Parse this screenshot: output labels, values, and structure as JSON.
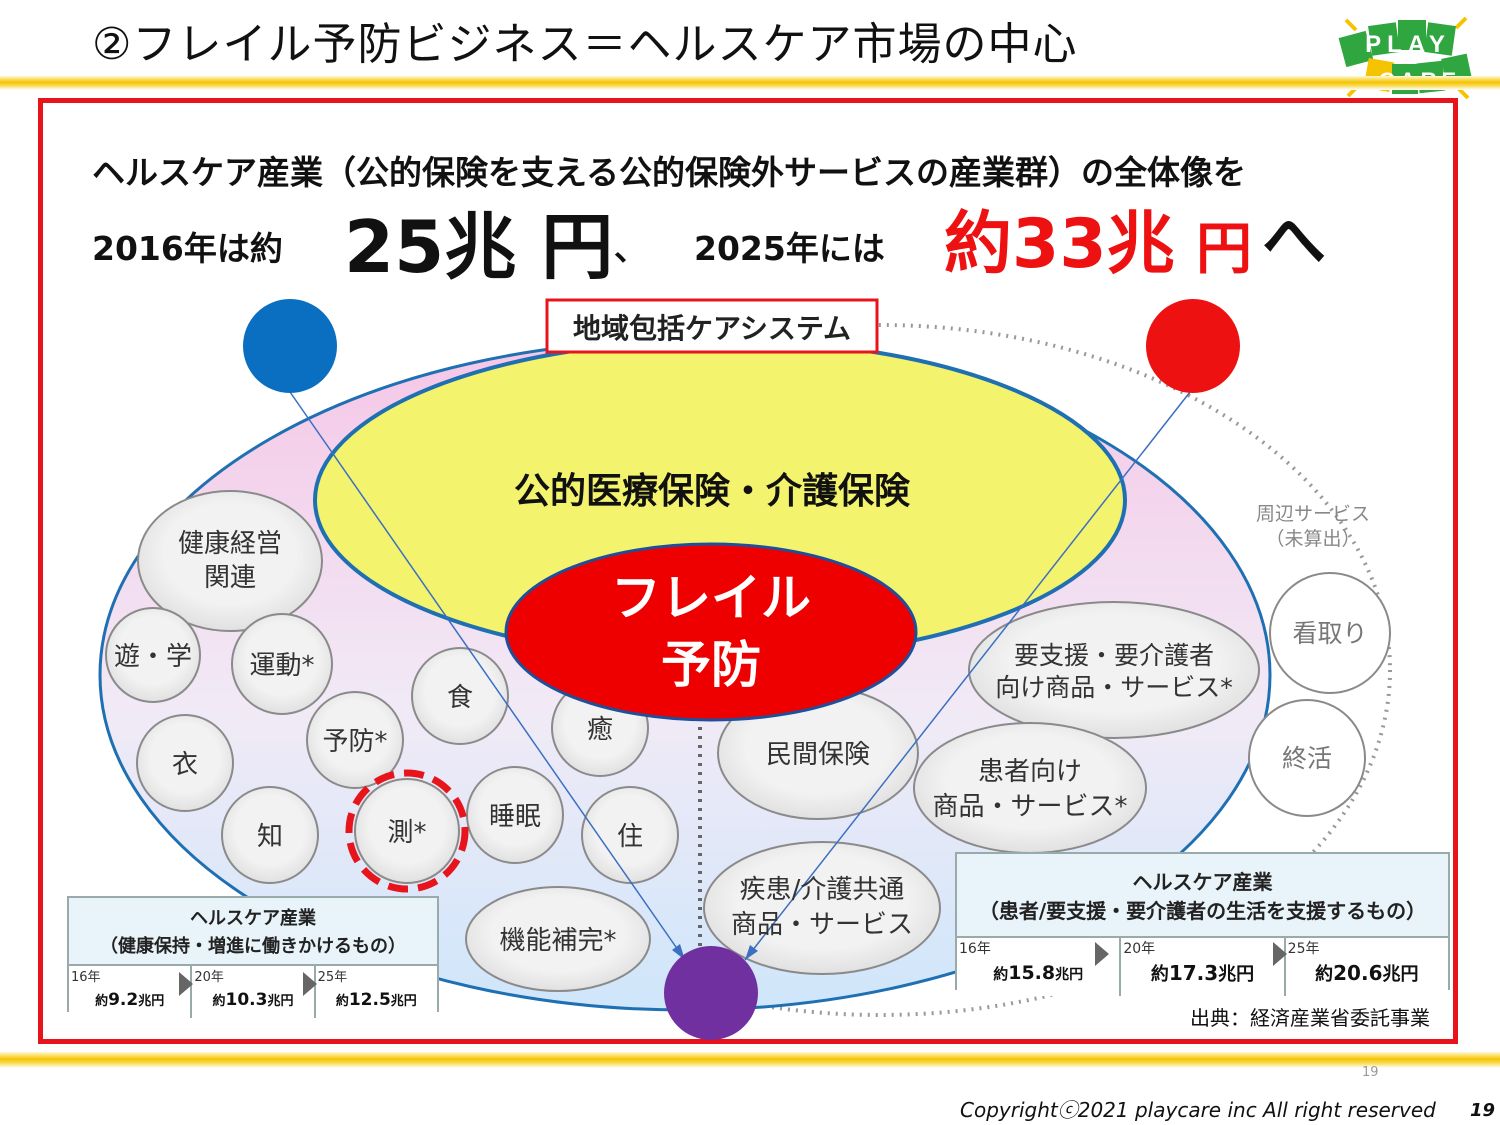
{
  "title": "②フレイル予防ビジネス＝ヘルスケア市場の中心",
  "logo": {
    "top": "PLAY",
    "bottom": "CARE"
  },
  "headline": "ヘルスケア産業（公的保険を支える公的保険外サービスの産業群）の全体像を",
  "line2": {
    "prefix": "2016年は約",
    "value1": "25兆 円",
    "comma": "、",
    "mid": "2025年には",
    "value2": "約33兆",
    "value2_unit": "円",
    "suffix": "へ"
  },
  "diagram": {
    "care_system_label": "地域包括ケアシステム",
    "public_insurance": "公的医療保険・介護保険",
    "frail_line1": "フレイル",
    "frail_line2": "予防",
    "peripheral_line1": "周辺サービス",
    "peripheral_line2": "（未算出）",
    "left_circles": {
      "kenko1": "健康経営",
      "kenko2": "関連",
      "asobi": "遊・学",
      "undo": "運動*",
      "shoku": "食",
      "iyashi": "癒",
      "koromo": "衣",
      "yobo": "予防*",
      "chi": "知",
      "soku": "測*",
      "suimin": "睡眠",
      "ju": "住",
      "kino": "機能補完*"
    },
    "right_circles": {
      "yoshien1": "要支援・要介護者",
      "yoshien2": "向け商品・サービス*",
      "minkan": "民間保険",
      "kanja1": "患者向け",
      "kanja2": "商品・サービス*",
      "shikkan1": "疾患/介護共通",
      "shikkan2": "商品・サービス",
      "mitori": "看取り",
      "shukatsu": "終活"
    }
  },
  "left_box": {
    "title1": "ヘルスケア産業",
    "title2": "（健康保持・増進に働きかけるもの）",
    "cells": [
      {
        "year": "16年",
        "prefix": "約",
        "value": "9.2",
        "unit": "兆円"
      },
      {
        "year": "20年",
        "prefix": "約",
        "value": "10.3",
        "unit": "兆円"
      },
      {
        "year": "25年",
        "prefix": "約",
        "value": "12.5",
        "unit": "兆円"
      }
    ]
  },
  "right_box": {
    "title1": "ヘルスケア産業",
    "title2": "（患者/要支援・要介護者の生活を支援するもの）",
    "cells": [
      {
        "year": "16年",
        "prefix": "約",
        "value": "15.8",
        "unit": "兆円"
      },
      {
        "year": "20年",
        "prefix": "約",
        "value": "17.3",
        "unit": "兆円"
      },
      {
        "year": "25年",
        "prefix": "約",
        "value": "20.6",
        "unit": "兆円"
      }
    ]
  },
  "source": "出典：経済産業省委託事業",
  "page_small": "19",
  "copyright": "Copyrightⓒ2021  playcare inc All  right  reserved",
  "page_number": "19",
  "colors": {
    "frame": "#e8141b",
    "blue_dot": "#0a6fc0",
    "red_dot": "#ee1111",
    "purple_dot": "#7030a0",
    "frail": "#ee0000",
    "yellow": "#f3f36e"
  }
}
